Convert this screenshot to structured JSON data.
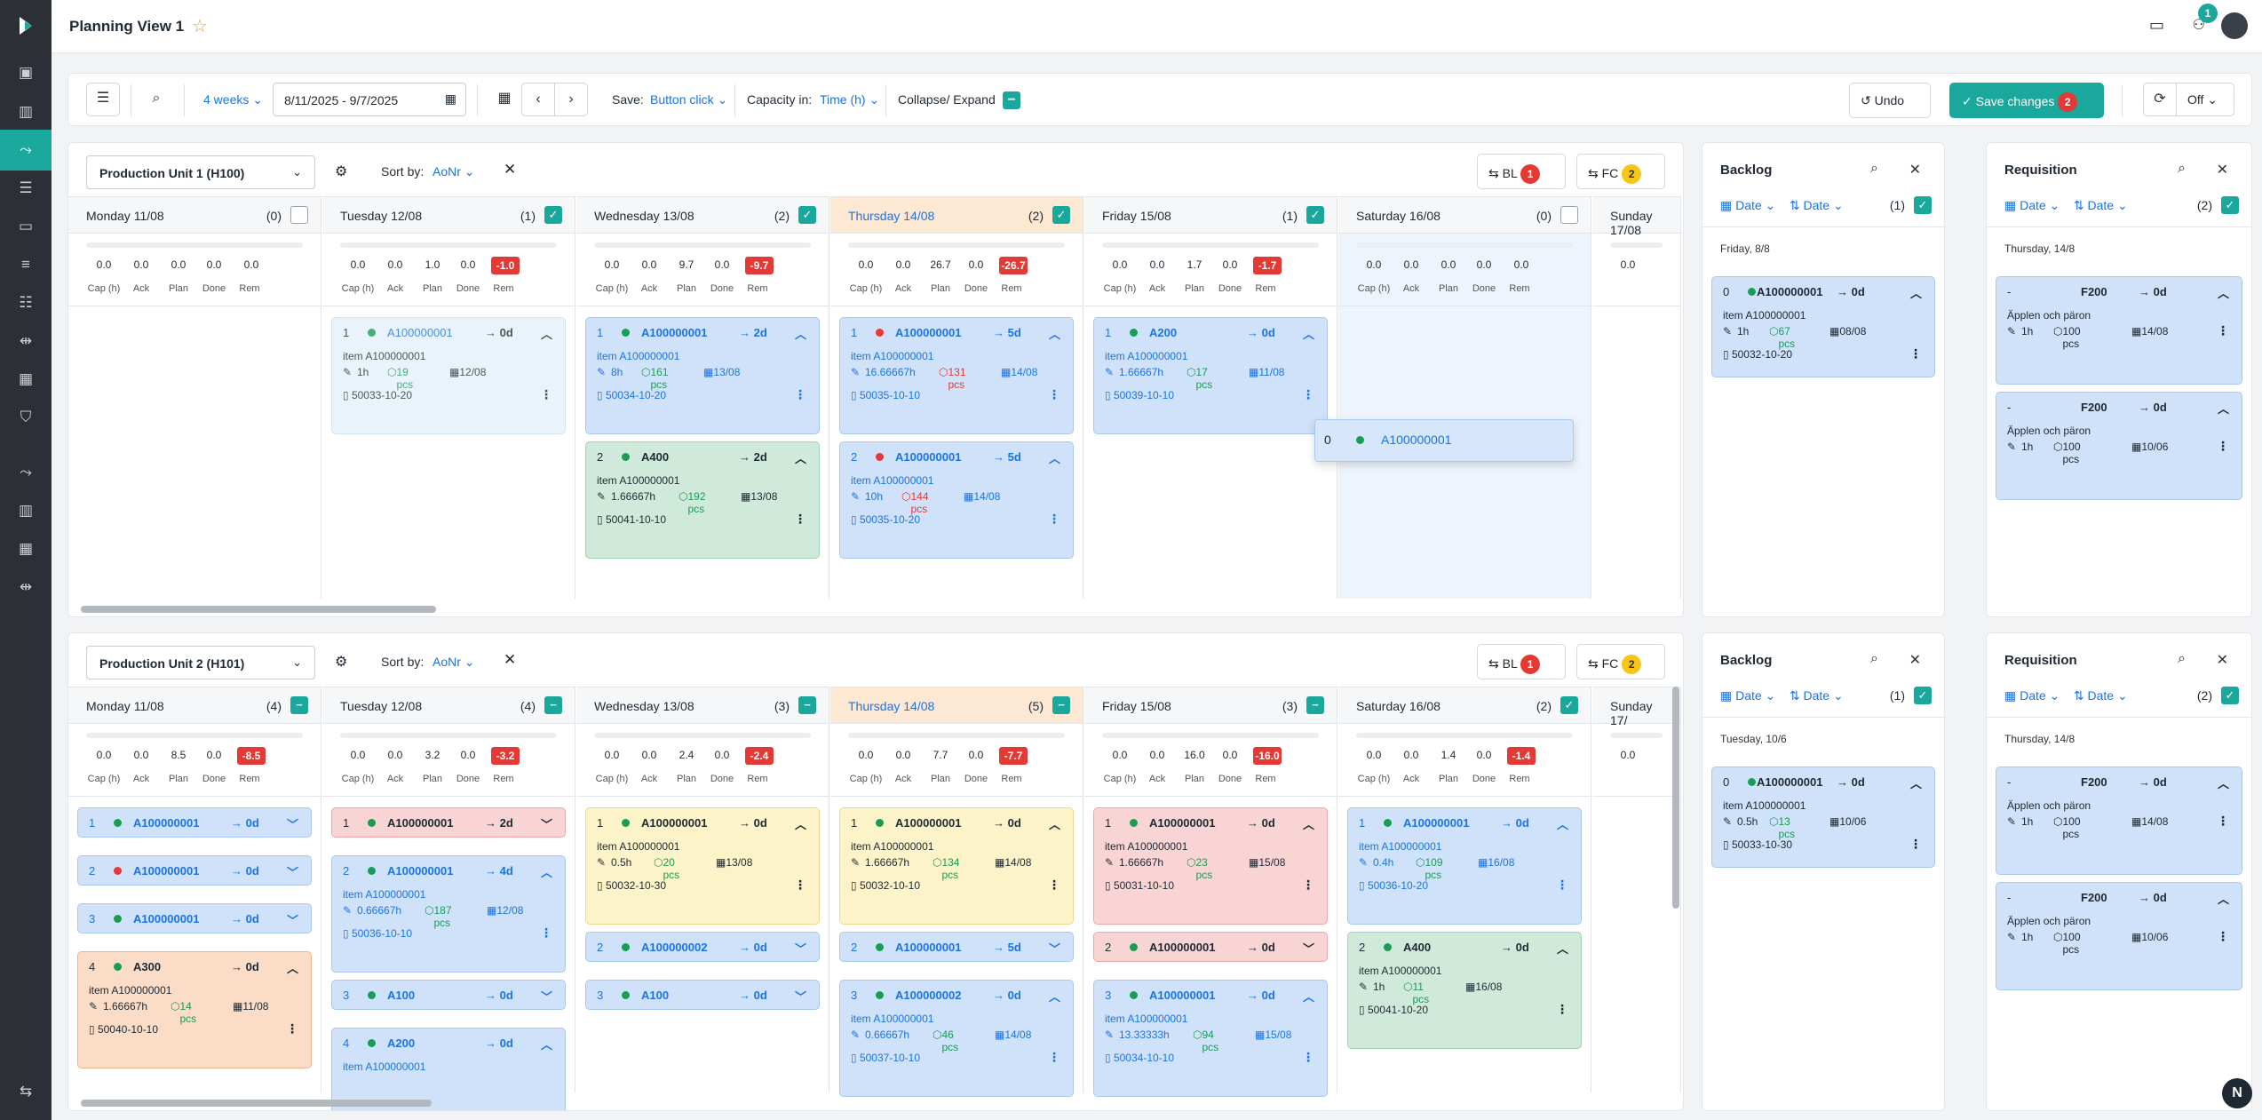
{
  "app": {
    "title": "Planning View 1",
    "notif_count": "1"
  },
  "toolbar": {
    "period": "4 weeks",
    "range": "8/11/2025 - 9/7/2025",
    "save_label": "Save:",
    "save_mode": "Button click",
    "cap_label": "Capacity in:",
    "cap_mode": "Time (h)",
    "collapse": "Collapse/ Expand",
    "undo": "Undo",
    "save_changes": "Save changes",
    "save_count": "2",
    "off": "Off"
  },
  "cap_labels": [
    "Cap (h)",
    "Ack",
    "Plan",
    "Done",
    "Rem"
  ],
  "units": [
    {
      "name": "Production Unit 1 (H100)",
      "sort_label": "Sort by:",
      "sort": "AoNr",
      "bl": "BL",
      "bl_count": "1",
      "fc": "FC",
      "fc_count": "2",
      "days": [
        {
          "name": "Monday 11/08",
          "count": "(0)",
          "chk": "off",
          "caps": [
            "0.0",
            "0.0",
            "0.0",
            "0.0",
            "0.0"
          ],
          "neg": false,
          "cards": []
        },
        {
          "name": "Tuesday 12/08",
          "count": "(1)",
          "chk": "on",
          "caps": [
            "0.0",
            "0.0",
            "1.0",
            "0.0",
            "-1.0"
          ],
          "neg": true,
          "cards": [
            {
              "n": "1",
              "dot": "g",
              "nm": "A100000001",
              "ar": "→ 0d",
              "style": "faded",
              "exp": true,
              "item": "item A100000001",
              "h": "1h",
              "pcs": "19 pcs",
              "pc": "gn",
              "date": "12/08",
              "ref": "50033-10-20"
            }
          ]
        },
        {
          "name": "Wednesday 13/08",
          "count": "(2)",
          "chk": "on",
          "caps": [
            "0.0",
            "0.0",
            "9.7",
            "0.0",
            "-9.7"
          ],
          "neg": true,
          "cards": [
            {
              "n": "1",
              "dot": "g",
              "nm": "A100000001",
              "ar": "→ 2d",
              "style": "blue",
              "exp": true,
              "item": "item A100000001",
              "h": "8h",
              "pcs": "161 pcs",
              "pc": "gn",
              "date": "13/08",
              "ref": "50034-10-20"
            },
            {
              "n": "2",
              "dot": "g",
              "nm": "A400",
              "ar": "→ 2d",
              "style": "green",
              "exp": true,
              "item": "item A100000001",
              "h": "1.66667h",
              "pcs": "192 pcs",
              "pc": "gn",
              "date": "13/08",
              "ref": "50041-10-10"
            }
          ]
        },
        {
          "name": "Thursday 14/08",
          "count": "(2)",
          "chk": "on",
          "caps": [
            "0.0",
            "0.0",
            "26.7",
            "0.0",
            "-26.7"
          ],
          "neg": true,
          "thu": true,
          "cards": [
            {
              "n": "1",
              "dot": "r",
              "nm": "A100000001",
              "ar": "→ 5d",
              "style": "blue",
              "exp": true,
              "item": "item A100000001",
              "h": "16.66667h",
              "pcs": "131 pcs",
              "pc": "rd",
              "date": "14/08",
              "ref": "50035-10-10"
            },
            {
              "n": "2",
              "dot": "r",
              "nm": "A100000001",
              "ar": "→ 5d",
              "style": "blue",
              "exp": true,
              "item": "item A100000001",
              "h": "10h",
              "pcs": "144 pcs",
              "pc": "rd",
              "date": "14/08",
              "ref": "50035-10-20"
            }
          ]
        },
        {
          "name": "Friday 15/08",
          "count": "(1)",
          "chk": "on",
          "caps": [
            "0.0",
            "0.0",
            "1.7",
            "0.0",
            "-1.7"
          ],
          "neg": true,
          "cards": [
            {
              "n": "1",
              "dot": "g",
              "nm": "A200",
              "ar": "→ 0d",
              "style": "blue",
              "exp": true,
              "item": "item A100000001",
              "h": "1.66667h",
              "pcs": "17 pcs",
              "pc": "gn",
              "date": "11/08",
              "ref": "50039-10-10"
            }
          ]
        },
        {
          "name": "Saturday 16/08",
          "count": "(0)",
          "chk": "off",
          "caps": [
            "0.0",
            "0.0",
            "0.0",
            "0.0",
            "0.0"
          ],
          "neg": false,
          "sat": true,
          "cards": []
        },
        {
          "name": "Sunday 17/08",
          "count": "",
          "chk": "none",
          "caps": [
            "0.0"
          ],
          "neg": false,
          "cards": []
        }
      ]
    },
    {
      "name": "Production Unit 2 (H101)",
      "sort_label": "Sort by:",
      "sort": "AoNr",
      "bl": "BL",
      "bl_count": "1",
      "fc": "FC",
      "fc_count": "2",
      "days": [
        {
          "name": "Monday 11/08",
          "count": "(4)",
          "chk": "min",
          "caps": [
            "0.0",
            "0.0",
            "8.5",
            "0.0",
            "-8.5"
          ],
          "neg": true,
          "cards": [
            {
              "n": "1",
              "dot": "g",
              "nm": "A100000001",
              "ar": "→ 0d",
              "style": "blue",
              "exp": false
            },
            {
              "n": "2",
              "dot": "r",
              "nm": "A100000001",
              "ar": "→ 0d",
              "style": "blue",
              "exp": false
            },
            {
              "n": "3",
              "dot": "g",
              "nm": "A100000001",
              "ar": "→ 0d",
              "style": "blue",
              "exp": false
            },
            {
              "n": "4",
              "dot": "g",
              "nm": "A300",
              "ar": "→ 0d",
              "style": "orange",
              "exp": true,
              "item": "item A100000001",
              "h": "1.66667h",
              "pcs": "14 pcs",
              "pc": "gn",
              "date": "11/08",
              "ref": "50040-10-10"
            }
          ]
        },
        {
          "name": "Tuesday 12/08",
          "count": "(4)",
          "chk": "min",
          "caps": [
            "0.0",
            "0.0",
            "3.2",
            "0.0",
            "-3.2"
          ],
          "neg": true,
          "cards": [
            {
              "n": "1",
              "dot": "g",
              "nm": "A100000001",
              "ar": "→ 2d",
              "style": "red",
              "exp": false
            },
            {
              "n": "2",
              "dot": "g",
              "nm": "A100000001",
              "ar": "→ 4d",
              "style": "blue",
              "exp": true,
              "item": "item A100000001",
              "h": "0.66667h",
              "pcs": "187 pcs",
              "pc": "gn",
              "date": "12/08",
              "ref": "50036-10-10"
            },
            {
              "n": "3",
              "dot": "g",
              "nm": "A100",
              "ar": "→ 0d",
              "style": "blue",
              "exp": false
            },
            {
              "n": "4",
              "dot": "g",
              "nm": "A200",
              "ar": "→ 0d",
              "style": "blue",
              "exp": true,
              "item": "item A100000001",
              "h": "",
              "pcs": "",
              "pc": "gn",
              "date": "",
              "ref": ""
            }
          ]
        },
        {
          "name": "Wednesday 13/08",
          "count": "(3)",
          "chk": "min",
          "caps": [
            "0.0",
            "0.0",
            "2.4",
            "0.0",
            "-2.4"
          ],
          "neg": true,
          "cards": [
            {
              "n": "1",
              "dot": "g",
              "nm": "A100000001",
              "ar": "→ 0d",
              "style": "yellow",
              "exp": true,
              "item": "item A100000001",
              "h": "0.5h",
              "pcs": "20 pcs",
              "pc": "gn",
              "date": "13/08",
              "ref": "50032-10-30"
            },
            {
              "n": "2",
              "dot": "g",
              "nm": "A100000002",
              "ar": "→ 0d",
              "style": "blue",
              "exp": false
            },
            {
              "n": "3",
              "dot": "g",
              "nm": "A100",
              "ar": "→ 0d",
              "style": "blue",
              "exp": false
            }
          ]
        },
        {
          "name": "Thursday 14/08",
          "count": "(5)",
          "chk": "min",
          "caps": [
            "0.0",
            "0.0",
            "7.7",
            "0.0",
            "-7.7"
          ],
          "neg": true,
          "thu": true,
          "cards": [
            {
              "n": "1",
              "dot": "g",
              "nm": "A100000001",
              "ar": "→ 0d",
              "style": "yellow",
              "exp": true,
              "item": "item A100000001",
              "h": "1.66667h",
              "pcs": "134 pcs",
              "pc": "gn",
              "date": "14/08",
              "ref": "50032-10-10"
            },
            {
              "n": "2",
              "dot": "g",
              "nm": "A100000001",
              "ar": "→ 5d",
              "style": "blue",
              "exp": false
            },
            {
              "n": "3",
              "dot": "g",
              "nm": "A100000002",
              "ar": "→ 0d",
              "style": "blue",
              "exp": true,
              "item": "item A100000001",
              "h": "0.66667h",
              "pcs": "46 pcs",
              "pc": "gn",
              "date": "14/08",
              "ref": "50037-10-10"
            }
          ]
        },
        {
          "name": "Friday 15/08",
          "count": "(3)",
          "chk": "min",
          "caps": [
            "0.0",
            "0.0",
            "16.0",
            "0.0",
            "-16.0"
          ],
          "neg": true,
          "cards": [
            {
              "n": "1",
              "dot": "g",
              "nm": "A100000001",
              "ar": "→ 0d",
              "style": "red",
              "exp": true,
              "item": "item A100000001",
              "h": "1.66667h",
              "pcs": "23 pcs",
              "pc": "gn",
              "date": "15/08",
              "ref": "50031-10-10"
            },
            {
              "n": "2",
              "dot": "g",
              "nm": "A100000001",
              "ar": "→ 0d",
              "style": "red",
              "exp": false
            },
            {
              "n": "3",
              "dot": "g",
              "nm": "A100000001",
              "ar": "→ 0d",
              "style": "blue",
              "exp": true,
              "item": "item A100000001",
              "h": "13.33333h",
              "pcs": "94 pcs",
              "pc": "gn",
              "date": "15/08",
              "ref": "50034-10-10"
            }
          ]
        },
        {
          "name": "Saturday 16/08",
          "count": "(2)",
          "chk": "on",
          "caps": [
            "0.0",
            "0.0",
            "1.4",
            "0.0",
            "-1.4"
          ],
          "neg": true,
          "cards": [
            {
              "n": "1",
              "dot": "g",
              "nm": "A100000001",
              "ar": "→ 0d",
              "style": "blue",
              "exp": true,
              "item": "item A100000001",
              "h": "0.4h",
              "pcs": "109 pcs",
              "pc": "gn",
              "date": "16/08",
              "ref": "50036-10-20"
            },
            {
              "n": "2",
              "dot": "g",
              "nm": "A400",
              "ar": "→ 0d",
              "style": "green",
              "exp": true,
              "item": "item A100000001",
              "h": "1h",
              "pcs": "11 pcs",
              "pc": "gn",
              "date": "16/08",
              "ref": "50041-10-20"
            }
          ]
        },
        {
          "name": "Sunday 17/",
          "count": "",
          "chk": "none",
          "caps": [
            "0.0"
          ],
          "neg": false,
          "cards": []
        }
      ]
    }
  ],
  "drag_card": {
    "n": "0",
    "nm": "A100000001"
  },
  "backlogs": [
    {
      "title": "Backlog",
      "f1": "Date",
      "f2": "Date",
      "count": "(1)",
      "date": "Friday, 8/8",
      "card": {
        "n": "0",
        "nm": "A100000001",
        "ar": "→ 0d",
        "item": "item A100000001",
        "h": "1h",
        "pcs": "67 pcs",
        "date": "08/08",
        "ref": "50032-10-20"
      }
    },
    {
      "title": "Backlog",
      "f1": "Date",
      "f2": "Date",
      "count": "(1)",
      "date": "Tuesday, 10/6",
      "card": {
        "n": "0",
        "nm": "A100000001",
        "ar": "→ 0d",
        "item": "item A100000001",
        "h": "0.5h",
        "pcs": "13 pcs",
        "date": "10/06",
        "ref": "50033-10-30"
      }
    }
  ],
  "requisitions": [
    {
      "title": "Requisition",
      "f1": "Date",
      "f2": "Date",
      "count": "(2)",
      "date": "Thursday, 14/8",
      "cards": [
        {
          "n": "-",
          "nm": "F200",
          "ar": "→ 0d",
          "item": "Äpplen och päron",
          "h": "1h",
          "pcs": "100 pcs",
          "date": "14/08"
        },
        {
          "n": "-",
          "nm": "F200",
          "ar": "→ 0d",
          "item": "Äpplen och päron",
          "h": "1h",
          "pcs": "100 pcs",
          "date": "10/06"
        }
      ]
    },
    {
      "title": "Requisition",
      "f1": "Date",
      "f2": "Date",
      "count": "(2)",
      "date": "Thursday, 14/8",
      "cards": [
        {
          "n": "-",
          "nm": "F200",
          "ar": "→ 0d",
          "item": "Äpplen och päron",
          "h": "1h",
          "pcs": "100 pcs",
          "date": "14/08"
        },
        {
          "n": "-",
          "nm": "F200",
          "ar": "→ 0d",
          "item": "Äpplen och päron",
          "h": "1h",
          "pcs": "100 pcs",
          "date": "10/06"
        }
      ]
    }
  ],
  "fab": "N"
}
